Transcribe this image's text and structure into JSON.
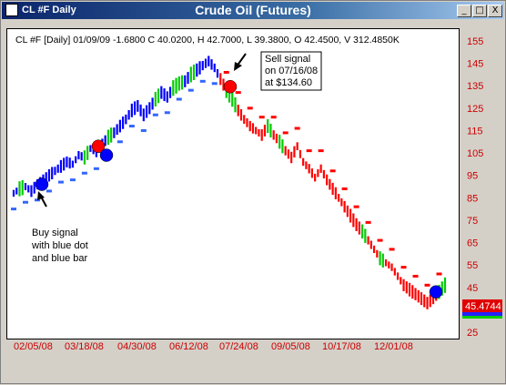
{
  "window": {
    "title": "CL #F Daily",
    "chart_title": "Crude Oil (Futures)",
    "buttons": {
      "minimize": "_",
      "maximize": "□",
      "close": "X"
    }
  },
  "chart": {
    "info_line": "CL #F [Daily] 01/09/09  -1.6800 C 40.0200, H 42.7000, L 39.3800, O 42.4500, V 312.4850K",
    "last_price_label": "45.4744",
    "annotations": {
      "sell": [
        "Sell signal",
        "on 07/16/08",
        "at $134.60"
      ],
      "buy": [
        "Buy signal",
        "with blue dot",
        "and blue bar"
      ]
    },
    "colors": {
      "up": "#0000ff",
      "down": "#ff0000",
      "neutral": "#00cc00",
      "axis_text": "#cc0000",
      "trail_support": "#3366ff",
      "trail_resist": "#ff0000"
    }
  },
  "chart_data": {
    "type": "line",
    "x_ticks": [
      "02/05/08",
      "03/18/08",
      "04/30/08",
      "06/12/08",
      "07/24/08",
      "09/05/08",
      "10/17/08",
      "12/01/08"
    ],
    "y_ticks": [
      155,
      145,
      135,
      125,
      115,
      105,
      95,
      85,
      75,
      65,
      55,
      45,
      35,
      25
    ],
    "ylim": [
      25,
      155
    ],
    "series": [
      {
        "values": [
          87,
          89,
          90,
          88,
          91,
          93,
          95,
          97,
          99,
          101,
          100,
          104,
          103,
          107,
          105,
          109,
          112,
          114,
          117,
          120,
          124,
          126,
          122,
          125,
          129,
          132,
          130,
          134,
          136,
          137,
          140,
          142,
          144,
          146,
          143,
          138,
          133,
          129,
          124,
          120,
          117,
          115,
          113,
          117,
          113,
          110,
          106,
          103,
          108,
          101,
          98,
          94,
          98,
          93,
          89,
          85,
          81,
          77,
          73,
          70,
          66,
          62,
          58,
          56,
          54,
          50,
          46,
          44,
          42,
          40,
          38,
          40,
          43,
          46
        ]
      }
    ],
    "signals": [
      {
        "type": "buy",
        "date": "02/2008",
        "price": 91
      },
      {
        "type": "sell",
        "date": "07/16/08",
        "price": 134.6
      },
      {
        "type": "sell",
        "date": "03/2008",
        "price": 108
      },
      {
        "type": "buy",
        "date": "03/2008",
        "price": 104
      },
      {
        "type": "buy",
        "date": "01/2009",
        "price": 43
      }
    ]
  }
}
